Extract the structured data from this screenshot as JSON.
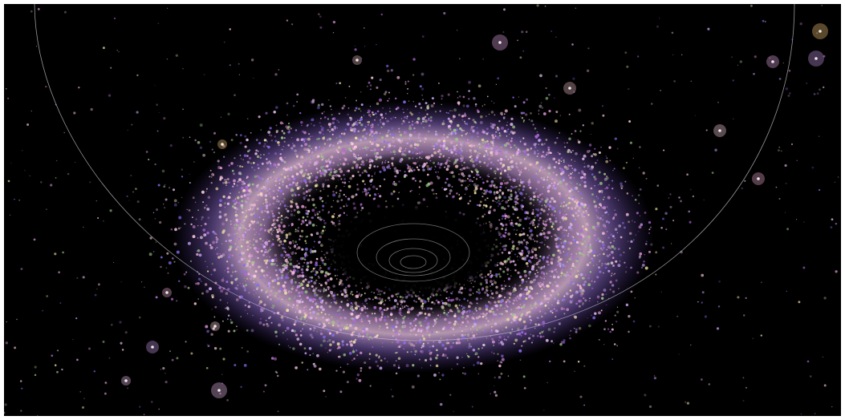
{
  "scene": {
    "subject": "asteroid-belt-visualization",
    "background_color": "#000000",
    "frame_color": "#ffffff",
    "orbit_line_color": "#c8c8c8",
    "particle_palette": [
      "#f2b8d8",
      "#c9a3f5",
      "#8a6cf0",
      "#f5e6a8",
      "#e7c0f0",
      "#b06ad8",
      "#ffd0e0",
      "#9fc88a",
      "#d88fd0"
    ],
    "halo_stars": [
      {
        "color": "#f2c0c8"
      },
      {
        "color": "#e8a8e8"
      },
      {
        "color": "#ffcf7a"
      },
      {
        "color": "#f0b0d0"
      },
      {
        "color": "#c89ae8"
      },
      {
        "color": "#f2c0f2"
      },
      {
        "color": "#ffd6e6"
      }
    ]
  }
}
